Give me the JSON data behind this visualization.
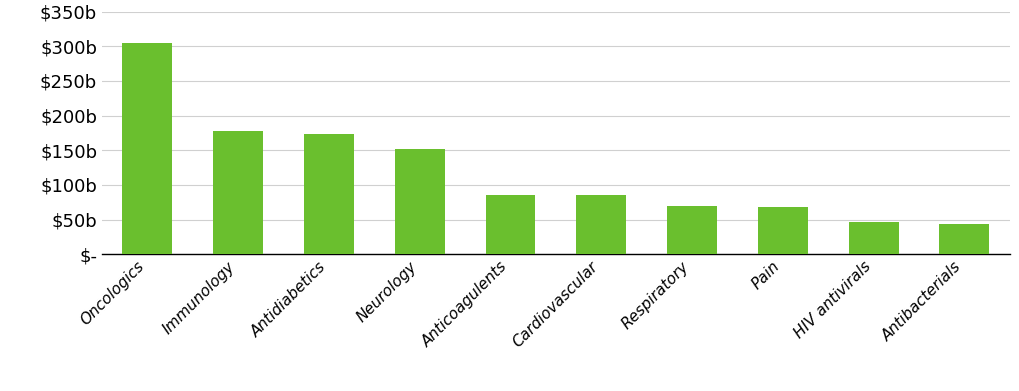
{
  "categories": [
    "Oncologics",
    "Immunology",
    "Antidiabetics",
    "Neurology",
    "Anticoagulents",
    "Cardiovascular",
    "Respiratory",
    "Pain",
    "HIV antivirals",
    "Antibacterials"
  ],
  "values": [
    305,
    178,
    174,
    152,
    85,
    85,
    70,
    68,
    47,
    43
  ],
  "bar_color": "#6abf2e",
  "ylim": [
    0,
    350
  ],
  "yticks": [
    0,
    50,
    100,
    150,
    200,
    250,
    300,
    350
  ],
  "ytick_labels": [
    "$-",
    "$50b",
    "$100b",
    "$150b",
    "$200b",
    "$250b",
    "$300b",
    "$350b"
  ],
  "background_color": "#ffffff",
  "grid_color": "#d0d0d0",
  "tick_label_fontsize": 13,
  "xtick_label_fontsize": 11,
  "bar_width": 0.55
}
